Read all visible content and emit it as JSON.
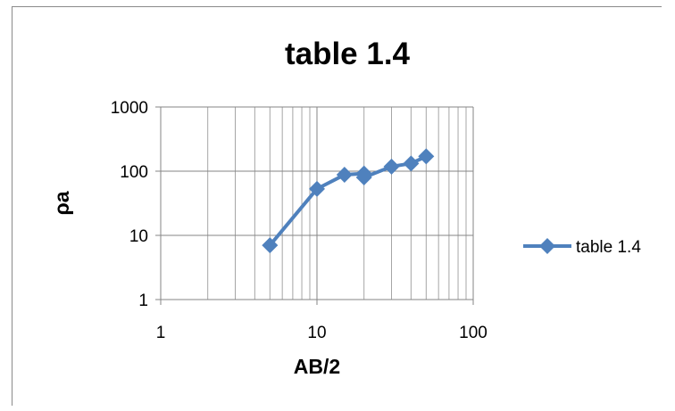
{
  "chart_data": {
    "type": "line",
    "title": "table 1.4",
    "xlabel": "AB/2",
    "ylabel": "ρa",
    "xscale": "log",
    "yscale": "log",
    "xlim": [
      1,
      100
    ],
    "ylim": [
      1,
      1000
    ],
    "x_ticks": [
      "1",
      "10",
      "100"
    ],
    "y_ticks": [
      "1",
      "10",
      "100",
      "1000"
    ],
    "grid": true,
    "legend": "right",
    "series": [
      {
        "name": "table 1.4",
        "color": "#4f81bd",
        "marker": "diamond",
        "x": [
          5,
          10,
          15,
          20,
          20,
          30,
          40,
          50
        ],
        "y": [
          7,
          53,
          88,
          92,
          80,
          118,
          132,
          170
        ]
      }
    ]
  }
}
